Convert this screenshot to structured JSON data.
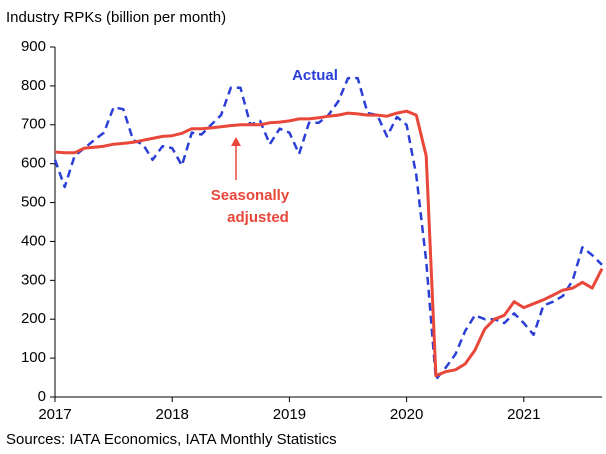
{
  "chart_data": {
    "type": "line",
    "title": "Industry RPKs (billion per month)",
    "source": "Sources: IATA Economics, IATA Monthly Statistics",
    "annotations": [
      "Actual",
      "Seasonally",
      "adjusted"
    ],
    "x": [
      2017,
      2017.083,
      2017.167,
      2017.25,
      2017.333,
      2017.417,
      2017.5,
      2017.583,
      2017.667,
      2017.75,
      2017.833,
      2017.917,
      2018,
      2018.083,
      2018.167,
      2018.25,
      2018.333,
      2018.417,
      2018.5,
      2018.583,
      2018.667,
      2018.75,
      2018.833,
      2018.917,
      2019,
      2019.083,
      2019.167,
      2019.25,
      2019.333,
      2019.417,
      2019.5,
      2019.583,
      2019.667,
      2019.75,
      2019.833,
      2019.917,
      2020,
      2020.083,
      2020.167,
      2020.25,
      2020.333,
      2020.417,
      2020.5,
      2020.583,
      2020.667,
      2020.75,
      2020.833,
      2020.917,
      2021,
      2021.083,
      2021.167,
      2021.25,
      2021.333,
      2021.417,
      2021.5,
      2021.583,
      2021.667
    ],
    "series": [
      {
        "name": "Actual",
        "color": "#2b3fd6",
        "dashed": true,
        "values": [
          610,
          540,
          620,
          640,
          660,
          680,
          745,
          740,
          660,
          650,
          610,
          645,
          640,
          595,
          680,
          675,
          700,
          725,
          795,
          795,
          700,
          710,
          650,
          690,
          680,
          625,
          705,
          705,
          725,
          760,
          820,
          820,
          730,
          725,
          670,
          720,
          700,
          570,
          350,
          45,
          75,
          110,
          170,
          210,
          200,
          200,
          190,
          215,
          190,
          160,
          235,
          245,
          260,
          300,
          385,
          365,
          340
        ]
      },
      {
        "name": "Seasonally adjusted",
        "color": "#e8473a",
        "dashed": false,
        "values": [
          630,
          628,
          628,
          640,
          642,
          645,
          650,
          652,
          655,
          660,
          665,
          670,
          672,
          678,
          690,
          690,
          692,
          695,
          698,
          700,
          700,
          700,
          705,
          707,
          710,
          715,
          715,
          718,
          722,
          725,
          730,
          728,
          725,
          725,
          722,
          730,
          735,
          725,
          620,
          55,
          65,
          70,
          85,
          120,
          175,
          200,
          210,
          245,
          230,
          240,
          250,
          262,
          275,
          280,
          295,
          280,
          330
        ]
      }
    ],
    "xlim": [
      2017,
      2021.667
    ],
    "xticks": [
      2017,
      2018,
      2019,
      2020,
      2021
    ],
    "ylim": [
      0,
      900
    ],
    "yticks": [
      0,
      100,
      200,
      300,
      400,
      500,
      600,
      700,
      800,
      900
    ]
  }
}
